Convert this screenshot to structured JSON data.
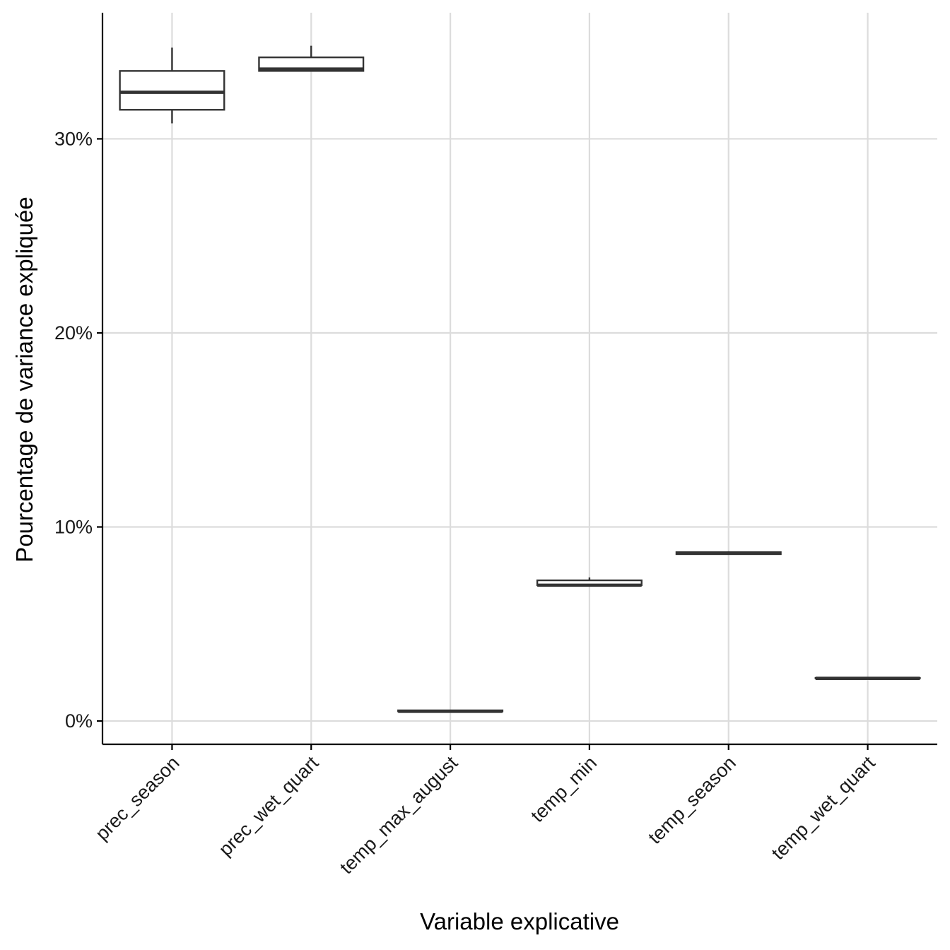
{
  "chart_data": {
    "type": "boxplot",
    "xlabel": "Variable explicative",
    "ylabel": "Pourcentage de variance expliquée",
    "ylim": [
      -1.2,
      36.5
    ],
    "y_ticks": [
      {
        "value": 0,
        "label": "0%"
      },
      {
        "value": 10,
        "label": "10%"
      },
      {
        "value": 20,
        "label": "20%"
      },
      {
        "value": 30,
        "label": "30%"
      }
    ],
    "grid": true,
    "categories": [
      "prec_season",
      "prec_wet_quart",
      "temp_max_august",
      "temp_min",
      "temp_season",
      "temp_wet_quart"
    ],
    "boxes": [
      {
        "category": "prec_season",
        "whisker_low": 30.8,
        "q1": 31.5,
        "median": 32.4,
        "q3": 33.5,
        "whisker_high": 34.7
      },
      {
        "category": "prec_wet_quart",
        "whisker_low": 33.5,
        "q1": 33.5,
        "median": 33.6,
        "q3": 34.2,
        "whisker_high": 34.8
      },
      {
        "category": "temp_max_august",
        "whisker_low": 0.5,
        "q1": 0.5,
        "median": 0.5,
        "q3": 0.55,
        "whisker_high": 0.55
      },
      {
        "category": "temp_min",
        "whisker_low": 7.0,
        "q1": 7.0,
        "median": 7.0,
        "q3": 7.25,
        "whisker_high": 7.4
      },
      {
        "category": "temp_season",
        "whisker_low": 8.6,
        "q1": 8.6,
        "median": 8.65,
        "q3": 8.7,
        "whisker_high": 8.75
      },
      {
        "category": "temp_wet_quart",
        "whisker_low": 2.2,
        "q1": 2.2,
        "median": 2.2,
        "q3": 2.22,
        "whisker_high": 2.22
      }
    ],
    "colors": {
      "grid": "#dcdcdc",
      "box_stroke": "#333333",
      "axis": "#000000"
    }
  }
}
